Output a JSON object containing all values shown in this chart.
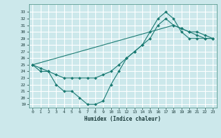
{
  "xlabel": "Humidex (Indice chaleur)",
  "xlim": [
    -0.5,
    23.5
  ],
  "ylim": [
    18.5,
    34.2
  ],
  "yticks": [
    19,
    20,
    21,
    22,
    23,
    24,
    25,
    26,
    27,
    28,
    29,
    30,
    31,
    32,
    33
  ],
  "xticks": [
    0,
    1,
    2,
    3,
    4,
    5,
    6,
    7,
    8,
    9,
    10,
    11,
    12,
    13,
    14,
    15,
    16,
    17,
    18,
    19,
    20,
    21,
    22,
    23
  ],
  "bg_color": "#cce8eb",
  "grid_color": "#ffffff",
  "line_color": "#1a7a72",
  "line1_x": [
    0,
    1,
    2,
    3,
    4,
    5,
    6,
    7,
    8,
    9,
    10,
    11,
    12,
    13,
    14,
    15,
    16,
    17,
    18,
    19,
    20,
    21,
    22,
    23
  ],
  "line1_y": [
    25,
    24,
    24,
    22,
    21,
    21,
    20,
    19,
    19,
    19.5,
    22,
    24,
    26,
    27,
    28,
    30,
    32,
    33,
    32,
    30,
    29,
    29,
    29,
    29
  ],
  "line2_x": [
    0,
    1,
    2,
    3,
    4,
    5,
    6,
    7,
    8,
    9,
    10,
    11,
    12,
    13,
    14,
    15,
    16,
    17,
    18,
    19,
    20,
    21,
    22,
    23
  ],
  "line2_y": [
    25,
    24.5,
    24,
    23.5,
    23,
    23,
    23,
    23,
    23,
    23.5,
    24,
    25,
    26,
    27,
    28,
    29,
    31,
    32,
    31,
    30.5,
    30,
    29.5,
    29,
    29
  ],
  "line3_x": [
    0,
    18,
    19,
    20,
    21,
    22,
    23
  ],
  "line3_y": [
    25,
    31,
    30.5,
    30,
    30,
    29.5,
    29
  ]
}
